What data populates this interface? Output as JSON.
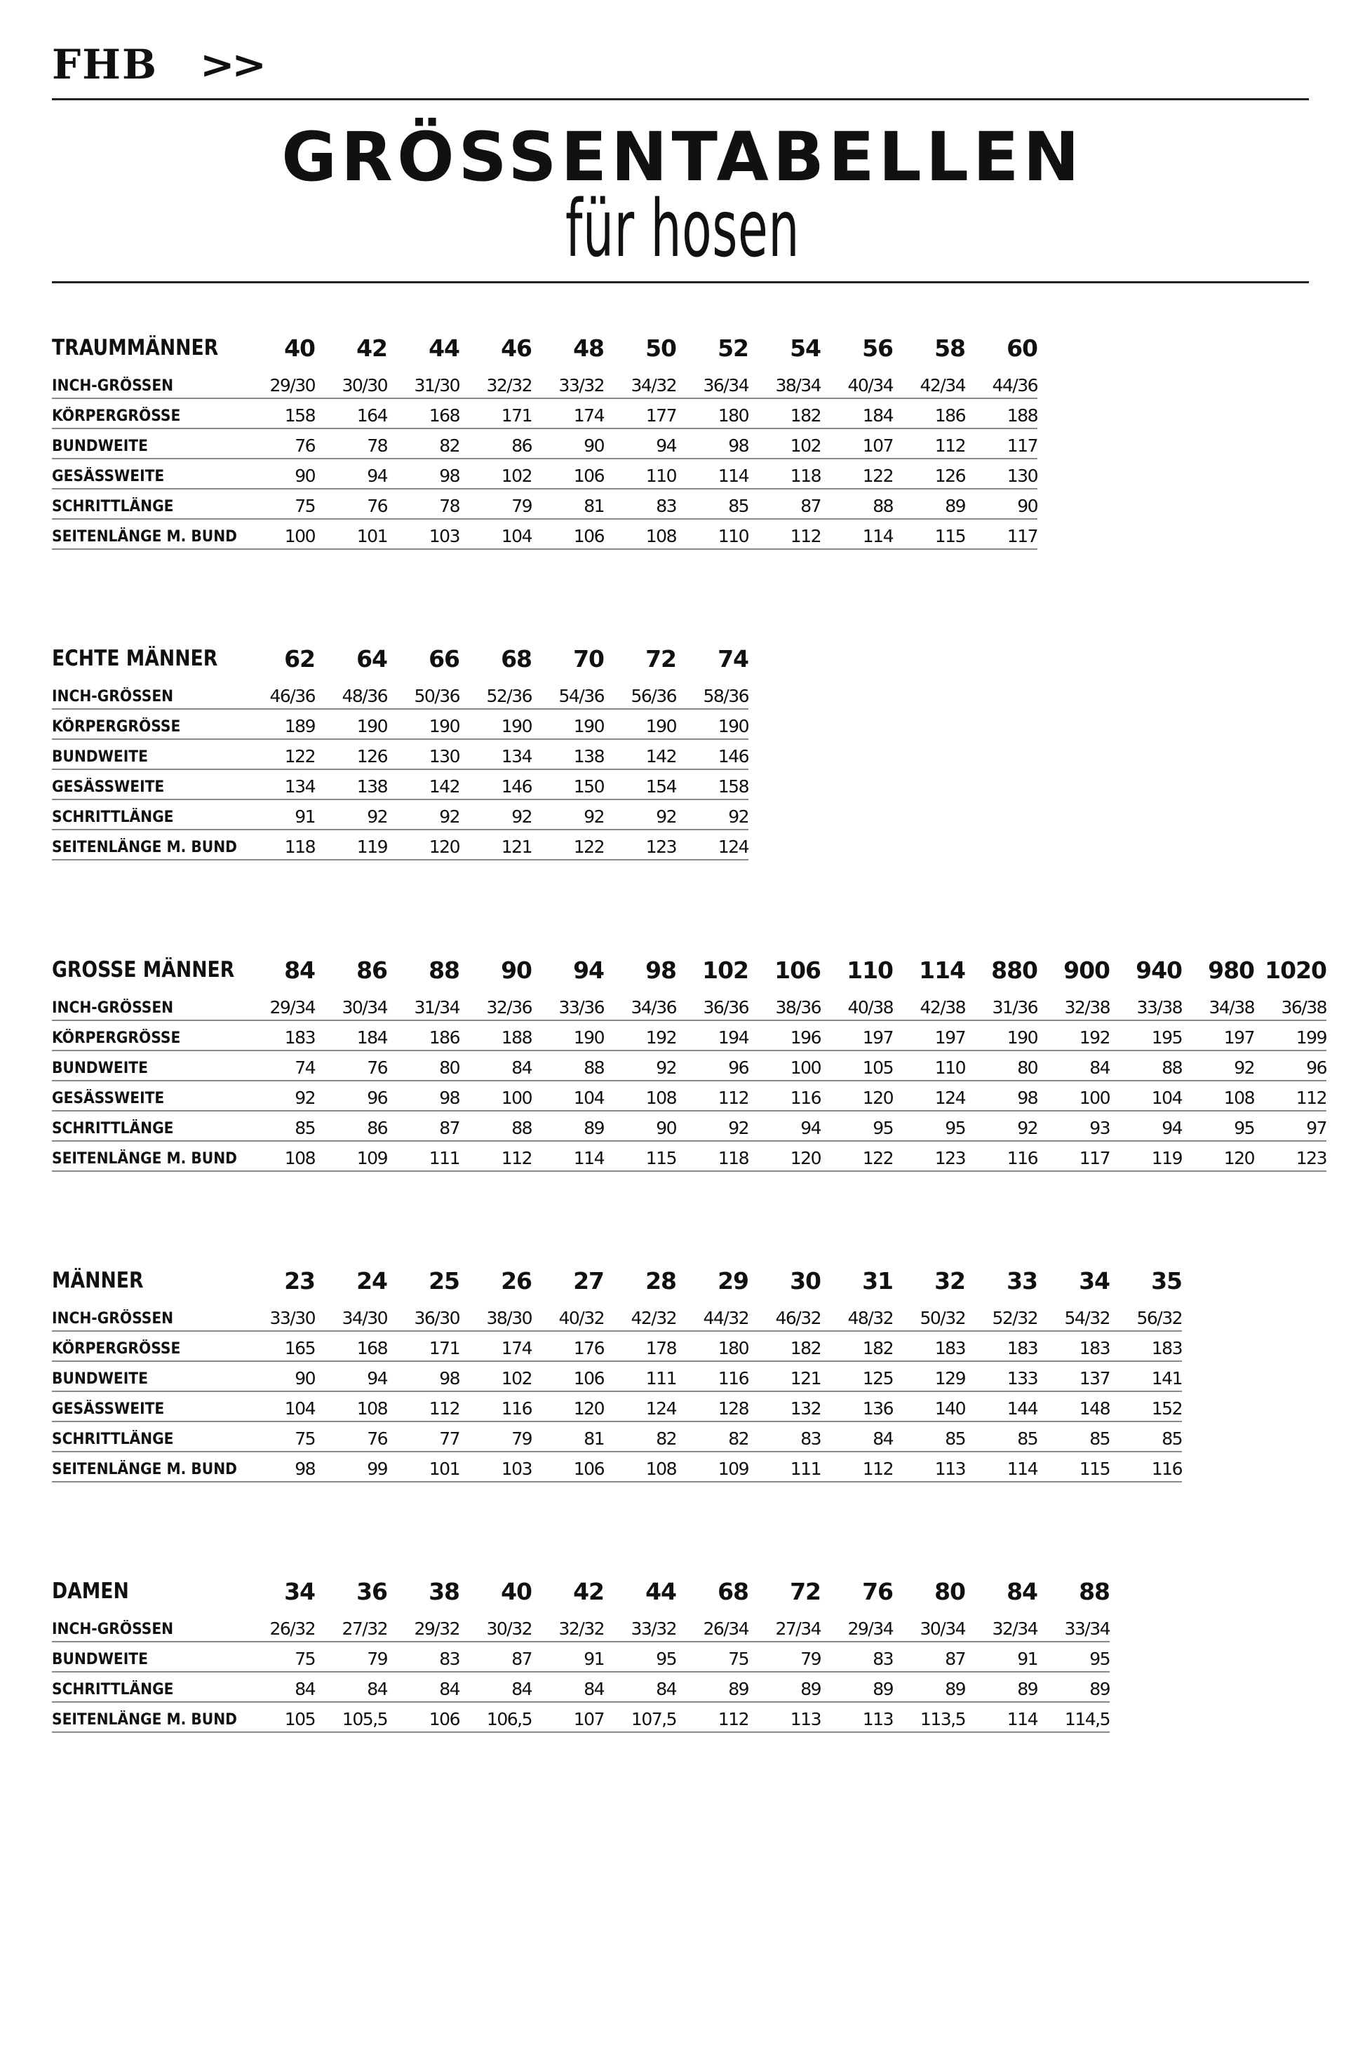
{
  "header": {
    "logo_text": "FHB",
    "logo_arrows": ">>",
    "title": "GRÖSSENTABELLEN",
    "subtitle": "für hosen"
  },
  "tables": [
    {
      "title": "TRAUMMÄNNER",
      "sizes": [
        "40",
        "42",
        "44",
        "46",
        "48",
        "50",
        "52",
        "54",
        "56",
        "58",
        "60"
      ],
      "rows": [
        {
          "label": "INCH-GRÖSSEN",
          "values": [
            "29/30",
            "30/30",
            "31/30",
            "32/32",
            "33/32",
            "34/32",
            "36/34",
            "38/34",
            "40/34",
            "42/34",
            "44/36"
          ]
        },
        {
          "label": "KÖRPERGRÖSSE",
          "values": [
            "158",
            "164",
            "168",
            "171",
            "174",
            "177",
            "180",
            "182",
            "184",
            "186",
            "188"
          ]
        },
        {
          "label": "BUNDWEITE",
          "values": [
            "76",
            "78",
            "82",
            "86",
            "90",
            "94",
            "98",
            "102",
            "107",
            "112",
            "117"
          ]
        },
        {
          "label": "GESÄSSWEITE",
          "values": [
            "90",
            "94",
            "98",
            "102",
            "106",
            "110",
            "114",
            "118",
            "122",
            "126",
            "130"
          ]
        },
        {
          "label": "SCHRITTLÄNGE",
          "values": [
            "75",
            "76",
            "78",
            "79",
            "81",
            "83",
            "85",
            "87",
            "88",
            "89",
            "90"
          ]
        },
        {
          "label": "SEITENLÄNGE M. BUND",
          "values": [
            "100",
            "101",
            "103",
            "104",
            "106",
            "108",
            "110",
            "112",
            "114",
            "115",
            "117"
          ]
        }
      ]
    },
    {
      "title": "ECHTE MÄNNER",
      "sizes": [
        "62",
        "64",
        "66",
        "68",
        "70",
        "72",
        "74"
      ],
      "rows": [
        {
          "label": "INCH-GRÖSSEN",
          "values": [
            "46/36",
            "48/36",
            "50/36",
            "52/36",
            "54/36",
            "56/36",
            "58/36"
          ]
        },
        {
          "label": "KÖRPERGRÖSSE",
          "values": [
            "189",
            "190",
            "190",
            "190",
            "190",
            "190",
            "190"
          ]
        },
        {
          "label": "BUNDWEITE",
          "values": [
            "122",
            "126",
            "130",
            "134",
            "138",
            "142",
            "146"
          ]
        },
        {
          "label": "GESÄSSWEITE",
          "values": [
            "134",
            "138",
            "142",
            "146",
            "150",
            "154",
            "158"
          ]
        },
        {
          "label": "SCHRITTLÄNGE",
          "values": [
            "91",
            "92",
            "92",
            "92",
            "92",
            "92",
            "92"
          ]
        },
        {
          "label": "SEITENLÄNGE M. BUND",
          "values": [
            "118",
            "119",
            "120",
            "121",
            "122",
            "123",
            "124"
          ]
        }
      ]
    },
    {
      "title": "GROSSE MÄNNER",
      "sizes": [
        "84",
        "86",
        "88",
        "90",
        "94",
        "98",
        "102",
        "106",
        "110",
        "114",
        "880",
        "900",
        "940",
        "980",
        "1020"
      ],
      "rows": [
        {
          "label": "INCH-GRÖSSEN",
          "values": [
            "29/34",
            "30/34",
            "31/34",
            "32/36",
            "33/36",
            "34/36",
            "36/36",
            "38/36",
            "40/38",
            "42/38",
            "31/36",
            "32/38",
            "33/38",
            "34/38",
            "36/38"
          ]
        },
        {
          "label": "KÖRPERGRÖSSE",
          "values": [
            "183",
            "184",
            "186",
            "188",
            "190",
            "192",
            "194",
            "196",
            "197",
            "197",
            "190",
            "192",
            "195",
            "197",
            "199"
          ]
        },
        {
          "label": "BUNDWEITE",
          "values": [
            "74",
            "76",
            "80",
            "84",
            "88",
            "92",
            "96",
            "100",
            "105",
            "110",
            "80",
            "84",
            "88",
            "92",
            "96"
          ]
        },
        {
          "label": "GESÄSSWEITE",
          "values": [
            "92",
            "96",
            "98",
            "100",
            "104",
            "108",
            "112",
            "116",
            "120",
            "124",
            "98",
            "100",
            "104",
            "108",
            "112"
          ]
        },
        {
          "label": "SCHRITTLÄNGE",
          "values": [
            "85",
            "86",
            "87",
            "88",
            "89",
            "90",
            "92",
            "94",
            "95",
            "95",
            "92",
            "93",
            "94",
            "95",
            "97"
          ]
        },
        {
          "label": "SEITENLÄNGE M. BUND",
          "values": [
            "108",
            "109",
            "111",
            "112",
            "114",
            "115",
            "118",
            "120",
            "122",
            "123",
            "116",
            "117",
            "119",
            "120",
            "123"
          ]
        }
      ]
    },
    {
      "title": "MÄNNER",
      "sizes": [
        "23",
        "24",
        "25",
        "26",
        "27",
        "28",
        "29",
        "30",
        "31",
        "32",
        "33",
        "34",
        "35"
      ],
      "rows": [
        {
          "label": "INCH-GRÖSSEN",
          "values": [
            "33/30",
            "34/30",
            "36/30",
            "38/30",
            "40/32",
            "42/32",
            "44/32",
            "46/32",
            "48/32",
            "50/32",
            "52/32",
            "54/32",
            "56/32"
          ]
        },
        {
          "label": "KÖRPERGRÖSSE",
          "values": [
            "165",
            "168",
            "171",
            "174",
            "176",
            "178",
            "180",
            "182",
            "182",
            "183",
            "183",
            "183",
            "183"
          ]
        },
        {
          "label": "BUNDWEITE",
          "values": [
            "90",
            "94",
            "98",
            "102",
            "106",
            "111",
            "116",
            "121",
            "125",
            "129",
            "133",
            "137",
            "141"
          ]
        },
        {
          "label": "GESÄSSWEITE",
          "values": [
            "104",
            "108",
            "112",
            "116",
            "120",
            "124",
            "128",
            "132",
            "136",
            "140",
            "144",
            "148",
            "152"
          ]
        },
        {
          "label": "SCHRITTLÄNGE",
          "values": [
            "75",
            "76",
            "77",
            "79",
            "81",
            "82",
            "82",
            "83",
            "84",
            "85",
            "85",
            "85",
            "85"
          ]
        },
        {
          "label": "SEITENLÄNGE M. BUND",
          "values": [
            "98",
            "99",
            "101",
            "103",
            "106",
            "108",
            "109",
            "111",
            "112",
            "113",
            "114",
            "115",
            "116"
          ]
        }
      ]
    },
    {
      "title": "DAMEN",
      "sizes": [
        "34",
        "36",
        "38",
        "40",
        "42",
        "44",
        "68",
        "72",
        "76",
        "80",
        "84",
        "88"
      ],
      "rows": [
        {
          "label": "INCH-GRÖSSEN",
          "values": [
            "26/32",
            "27/32",
            "29/32",
            "30/32",
            "32/32",
            "33/32",
            "26/34",
            "27/34",
            "29/34",
            "30/34",
            "32/34",
            "33/34"
          ]
        },
        {
          "label": "BUNDWEITE",
          "values": [
            "75",
            "79",
            "83",
            "87",
            "91",
            "95",
            "75",
            "79",
            "83",
            "87",
            "91",
            "95"
          ]
        },
        {
          "label": "SCHRITTLÄNGE",
          "values": [
            "84",
            "84",
            "84",
            "84",
            "84",
            "84",
            "89",
            "89",
            "89",
            "89",
            "89",
            "89"
          ]
        },
        {
          "label": "SEITENLÄNGE M. BUND",
          "values": [
            "105",
            "105,5",
            "106",
            "106,5",
            "107",
            "107,5",
            "112",
            "113",
            "113",
            "113,5",
            "114",
            "114,5"
          ]
        }
      ]
    }
  ]
}
